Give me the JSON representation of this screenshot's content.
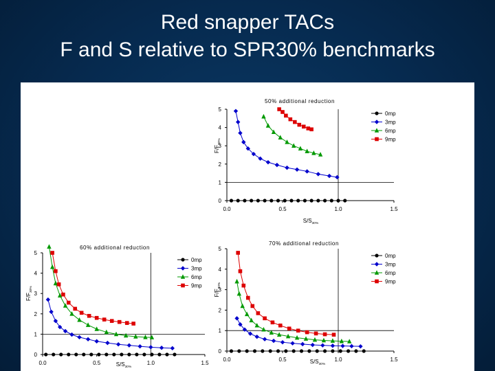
{
  "slide": {
    "title_line_1": "Red snapper TACs",
    "title_line_2": "F  and S relative to SPR30% benchmarks"
  },
  "colors": {
    "background": "#062a4f",
    "title_text": "#ffffff",
    "panel": "#ffffff",
    "series": {
      "0mp": "#000000",
      "3mp": "#0000cc",
      "6mp": "#009900",
      "9mp": "#dd0000"
    }
  },
  "chart_data": [
    {
      "type": "scatter",
      "title": "50% additional reduction",
      "xlabel": "S/S30%",
      "ylabel": "F/F30%",
      "xlim": [
        0,
        1.5
      ],
      "ylim": [
        0,
        5
      ],
      "xticks": [
        "0.0",
        "0.5",
        "1.0",
        "1.5"
      ],
      "yticks": [
        "0",
        "1",
        "2",
        "3",
        "4",
        "5"
      ],
      "legend": "top-right",
      "reference_lines": {
        "x": 1.0,
        "y": 1.0
      },
      "series": [
        {
          "name": "0mp",
          "marker": "circle",
          "color": "#000000",
          "x": [
            0.04,
            0.1,
            0.16,
            0.22,
            0.28,
            0.34,
            0.4,
            0.46,
            0.52,
            0.58,
            0.64,
            0.7,
            0.76,
            0.82,
            0.88,
            0.94,
            1.0,
            1.06
          ],
          "y": [
            0,
            0,
            0,
            0,
            0,
            0,
            0,
            0,
            0,
            0,
            0,
            0,
            0,
            0,
            0,
            0,
            0,
            0
          ]
        },
        {
          "name": "3mp",
          "marker": "diamond",
          "color": "#0000cc",
          "x": [
            0.08,
            0.1,
            0.12,
            0.15,
            0.19,
            0.24,
            0.3,
            0.37,
            0.45,
            0.54,
            0.63,
            0.72,
            0.82,
            0.92,
            0.99
          ],
          "y": [
            4.9,
            4.3,
            3.7,
            3.2,
            2.85,
            2.55,
            2.3,
            2.1,
            1.95,
            1.8,
            1.7,
            1.6,
            1.45,
            1.35,
            1.28
          ]
        },
        {
          "name": "6mp",
          "marker": "triangle",
          "color": "#009900",
          "x": [
            0.33,
            0.37,
            0.42,
            0.48,
            0.54,
            0.6,
            0.66,
            0.72,
            0.78,
            0.84
          ],
          "y": [
            4.6,
            4.1,
            3.75,
            3.45,
            3.2,
            3.0,
            2.85,
            2.7,
            2.6,
            2.52
          ]
        },
        {
          "name": "9mp",
          "marker": "square",
          "color": "#dd0000",
          "x": [
            0.47,
            0.5,
            0.53,
            0.57,
            0.61,
            0.65,
            0.69,
            0.73,
            0.76
          ],
          "y": [
            5.0,
            4.85,
            4.65,
            4.45,
            4.3,
            4.15,
            4.05,
            3.95,
            3.9
          ]
        }
      ]
    },
    {
      "type": "scatter",
      "title": "60% additional reduction",
      "xlabel": "S/S30%",
      "ylabel": "F/F30%",
      "xlim": [
        0,
        1.5
      ],
      "ylim": [
        0,
        5
      ],
      "xticks": [
        "0.0",
        "0.5",
        "1.0",
        "1.5"
      ],
      "yticks": [
        "0",
        "1",
        "2",
        "3",
        "4",
        "5"
      ],
      "legend": "top-right",
      "reference_lines": {
        "x": 1.0,
        "y": 1.0
      },
      "series": [
        {
          "name": "0mp",
          "marker": "circle",
          "color": "#000000",
          "x": [
            0.03,
            0.1,
            0.17,
            0.24,
            0.31,
            0.38,
            0.45,
            0.52,
            0.59,
            0.66,
            0.73,
            0.8,
            0.87,
            0.94,
            1.01,
            1.08,
            1.15,
            1.22
          ],
          "y": [
            0,
            0,
            0,
            0,
            0,
            0,
            0,
            0,
            0,
            0,
            0,
            0,
            0,
            0,
            0,
            0,
            0,
            0
          ]
        },
        {
          "name": "3mp",
          "marker": "diamond",
          "color": "#0000cc",
          "x": [
            0.05,
            0.08,
            0.12,
            0.16,
            0.21,
            0.27,
            0.34,
            0.42,
            0.5,
            0.6,
            0.7,
            0.8,
            0.9,
            1.0,
            1.1,
            1.2
          ],
          "y": [
            2.7,
            2.1,
            1.65,
            1.35,
            1.15,
            0.98,
            0.85,
            0.75,
            0.65,
            0.57,
            0.5,
            0.45,
            0.4,
            0.36,
            0.33,
            0.31
          ]
        },
        {
          "name": "6mp",
          "marker": "triangle",
          "color": "#009900",
          "x": [
            0.06,
            0.09,
            0.12,
            0.16,
            0.21,
            0.27,
            0.34,
            0.42,
            0.5,
            0.59,
            0.68,
            0.77,
            0.86,
            0.95,
            1.01
          ],
          "y": [
            5.3,
            4.3,
            3.5,
            2.9,
            2.4,
            2.0,
            1.7,
            1.45,
            1.25,
            1.1,
            1.0,
            0.93,
            0.88,
            0.85,
            0.84
          ]
        },
        {
          "name": "9mp",
          "marker": "square",
          "color": "#dd0000",
          "x": [
            0.09,
            0.12,
            0.15,
            0.19,
            0.24,
            0.3,
            0.36,
            0.43,
            0.5,
            0.57,
            0.64,
            0.71,
            0.78,
            0.84
          ],
          "y": [
            5.0,
            4.1,
            3.45,
            2.95,
            2.55,
            2.25,
            2.05,
            1.9,
            1.8,
            1.72,
            1.65,
            1.6,
            1.55,
            1.52
          ]
        }
      ]
    },
    {
      "type": "scatter",
      "title": "70% additional reduction",
      "xlabel": "S/S30%",
      "ylabel": "F/F30%",
      "xlim": [
        0,
        1.5
      ],
      "ylim": [
        0,
        5
      ],
      "xticks": [
        "0.0",
        "0.5",
        "1.0",
        "1.5"
      ],
      "yticks": [
        "0",
        "1",
        "2",
        "3",
        "4",
        "5"
      ],
      "legend": "top-right",
      "reference_lines": {
        "x": 1.0,
        "y": 1.0
      },
      "series": [
        {
          "name": "0mp",
          "marker": "circle",
          "color": "#000000",
          "x": [
            0.04,
            0.11,
            0.18,
            0.25,
            0.32,
            0.39,
            0.46,
            0.53,
            0.6,
            0.67,
            0.74,
            0.81,
            0.88,
            0.95,
            1.02,
            1.09,
            1.16,
            1.23
          ],
          "y": [
            0,
            0,
            0,
            0,
            0,
            0,
            0,
            0,
            0,
            0,
            0,
            0,
            0,
            0,
            0,
            0,
            0,
            0
          ]
        },
        {
          "name": "3mp",
          "marker": "diamond",
          "color": "#0000cc",
          "x": [
            0.09,
            0.12,
            0.16,
            0.21,
            0.27,
            0.34,
            0.42,
            0.5,
            0.59,
            0.68,
            0.77,
            0.86,
            0.95,
            1.04,
            1.12,
            1.2
          ],
          "y": [
            1.6,
            1.3,
            1.05,
            0.85,
            0.7,
            0.58,
            0.5,
            0.43,
            0.38,
            0.34,
            0.3,
            0.28,
            0.26,
            0.25,
            0.24,
            0.23
          ]
        },
        {
          "name": "6mp",
          "marker": "triangle",
          "color": "#009900",
          "x": [
            0.09,
            0.11,
            0.14,
            0.18,
            0.22,
            0.27,
            0.33,
            0.4,
            0.47,
            0.55,
            0.63,
            0.71,
            0.79,
            0.87,
            0.95,
            1.03,
            1.1
          ],
          "y": [
            3.4,
            2.8,
            2.2,
            1.8,
            1.5,
            1.25,
            1.05,
            0.9,
            0.8,
            0.72,
            0.65,
            0.6,
            0.55,
            0.52,
            0.5,
            0.48,
            0.47
          ]
        },
        {
          "name": "9mp",
          "marker": "square",
          "color": "#dd0000",
          "x": [
            0.1,
            0.12,
            0.15,
            0.19,
            0.23,
            0.28,
            0.34,
            0.41,
            0.48,
            0.56,
            0.64,
            0.72,
            0.8,
            0.88,
            0.96
          ],
          "y": [
            4.8,
            3.9,
            3.2,
            2.6,
            2.2,
            1.85,
            1.6,
            1.4,
            1.25,
            1.1,
            1.0,
            0.92,
            0.86,
            0.82,
            0.8
          ]
        }
      ]
    }
  ]
}
